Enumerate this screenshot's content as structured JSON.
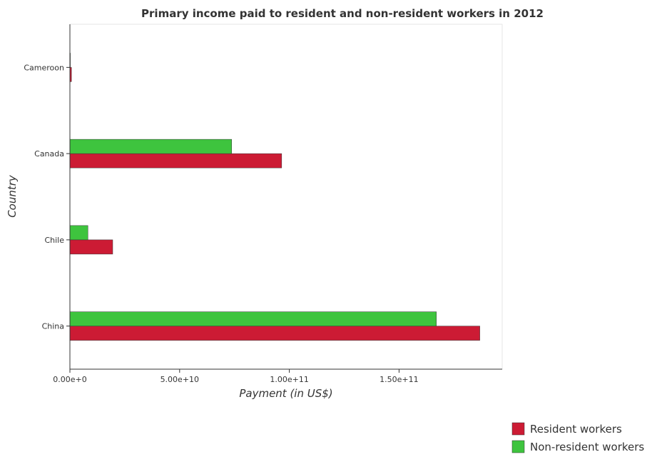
{
  "chart_data": {
    "type": "bar",
    "orientation": "horizontal",
    "title": "Primary income paid to resident and non-resident workers in 2012",
    "xlabel": "Payment (in US$)",
    "ylabel": "Country",
    "categories": [
      "Cameroon",
      "Canada",
      "Chile",
      "China"
    ],
    "series": [
      {
        "name": "Resident workers",
        "color": "#cc1b34",
        "values": [
          700000000,
          96500000000,
          19500000000,
          186800000000
        ]
      },
      {
        "name": "Non-resident workers",
        "color": "#3ec43e",
        "values": [
          200000000,
          73700000000,
          8200000000,
          167000000000
        ]
      }
    ],
    "xlim": [
      0,
      197000000000
    ],
    "xticks": [
      {
        "value": 0,
        "label": "0.00e+0"
      },
      {
        "value": 50000000000,
        "label": "5.00e+10"
      },
      {
        "value": 100000000000,
        "label": "1.00e+11"
      },
      {
        "value": 150000000000,
        "label": "1.50e+11"
      }
    ],
    "grid": false,
    "legend_position": "bottom-right"
  }
}
